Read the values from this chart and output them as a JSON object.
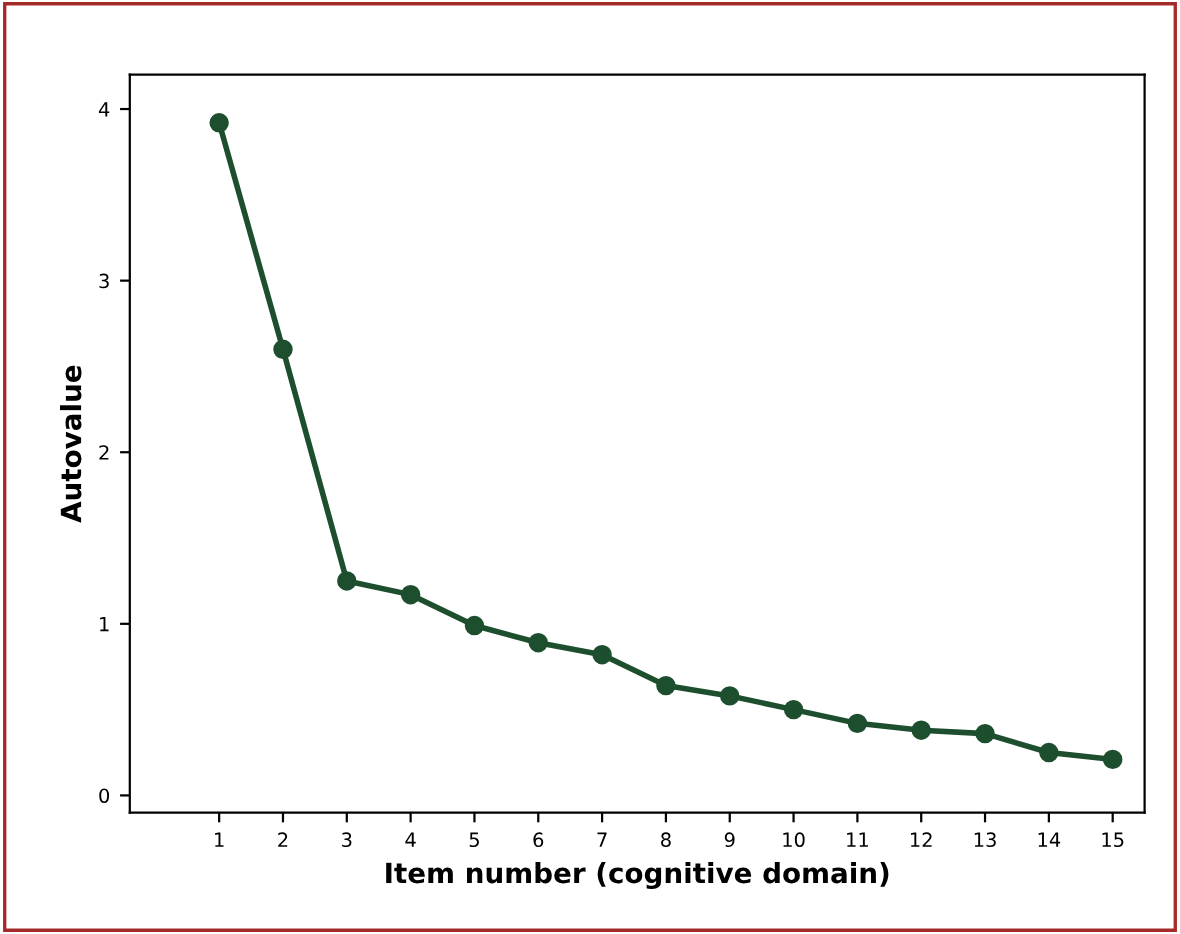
{
  "chart_data": {
    "type": "line",
    "xlabel": "Item number (cognitive domain)",
    "ylabel": "Autovalue",
    "categories": [
      "1",
      "2",
      "3",
      "4",
      "5",
      "6",
      "7",
      "8",
      "9",
      "10",
      "11",
      "12",
      "13",
      "14",
      "15"
    ],
    "series": [
      {
        "color": "#1d4f2f",
        "values": [
          3.92,
          2.6,
          1.25,
          1.17,
          0.99,
          0.89,
          0.82,
          0.64,
          0.58,
          0.5,
          0.42,
          0.38,
          0.36,
          0.25,
          0.21
        ]
      }
    ],
    "ylim": [
      -0.1,
      4.2
    ],
    "yticks": [
      0,
      1,
      2,
      3,
      4
    ],
    "grid": false,
    "legend": false,
    "marker": "circle",
    "line_style": "solid"
  }
}
